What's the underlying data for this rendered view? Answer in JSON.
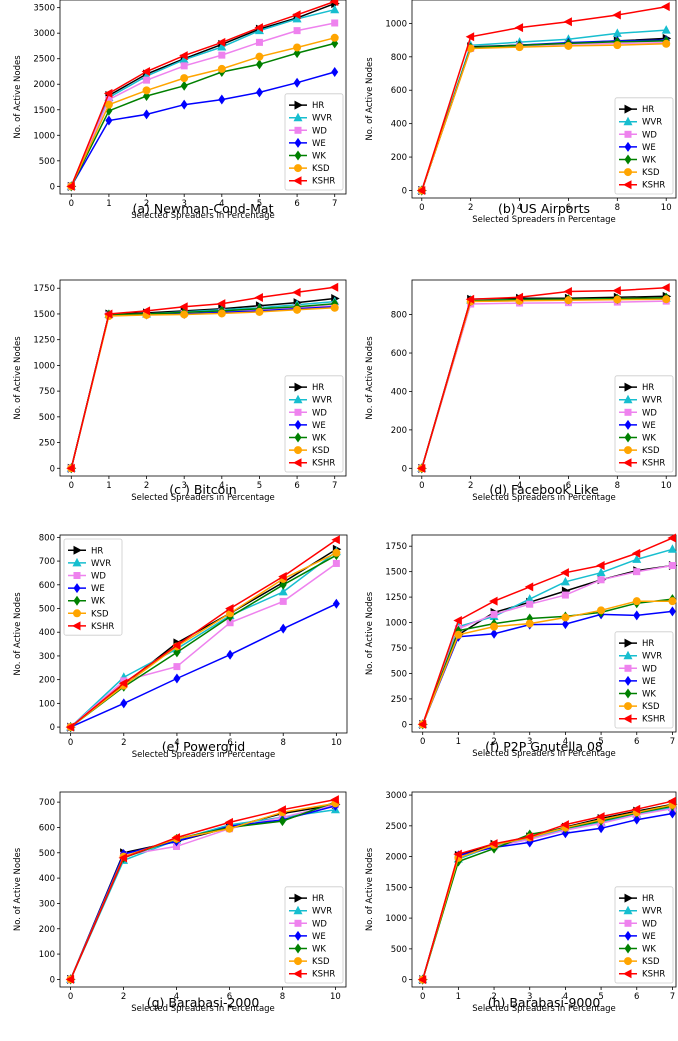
{
  "series_names": [
    "HR",
    "WVR",
    "WD",
    "WE",
    "WK",
    "KSD",
    "KSHR"
  ],
  "series_colors": [
    "#000000",
    "#17becf",
    "#ee82ee",
    "#0000ff",
    "#008000",
    "#ffa500",
    "#ff0000"
  ],
  "series_markers": [
    "triangle-right",
    "triangle-up",
    "square",
    "diamond",
    "diamond",
    "circle",
    "triangle-left"
  ],
  "chart_data": [
    {
      "type": "line",
      "caption": "(a)  Newman-Cond-Mat",
      "xlabel": "Selected Spreaders in Percentage",
      "ylabel": "No. of Active Nodes",
      "x": [
        0,
        1,
        2,
        3,
        4,
        5,
        6,
        7
      ],
      "xticks": [
        0,
        1,
        2,
        3,
        4,
        5,
        6,
        7
      ],
      "yticks": [
        0,
        500,
        1000,
        1500,
        2000,
        2500,
        3000,
        3500
      ],
      "xlim": [
        -0.3,
        7.3
      ],
      "ylim": [
        -150,
        3650
      ],
      "legend_position": "lower-right",
      "series": [
        {
          "name": "HR",
          "values": [
            0,
            1780,
            2200,
            2500,
            2780,
            3080,
            3300,
            3580
          ]
        },
        {
          "name": "WVR",
          "values": [
            0,
            1740,
            2160,
            2480,
            2730,
            3050,
            3280,
            3460
          ]
        },
        {
          "name": "WD",
          "values": [
            0,
            1700,
            2080,
            2360,
            2570,
            2820,
            3050,
            3200
          ]
        },
        {
          "name": "WE",
          "values": [
            0,
            1290,
            1410,
            1600,
            1700,
            1840,
            2030,
            2240
          ]
        },
        {
          "name": "WK",
          "values": [
            0,
            1480,
            1770,
            1970,
            2240,
            2390,
            2610,
            2800
          ]
        },
        {
          "name": "KSD",
          "values": [
            0,
            1600,
            1880,
            2120,
            2300,
            2540,
            2720,
            2910
          ]
        },
        {
          "name": "KSHR",
          "values": [
            0,
            1820,
            2250,
            2560,
            2820,
            3110,
            3360,
            3620
          ]
        }
      ]
    },
    {
      "type": "line",
      "caption": "(b) US Airports",
      "xlabel": "Selected Spreaders in Percentage",
      "ylabel": "No. of Active Nodes",
      "x": [
        0,
        2,
        4,
        6,
        8,
        10
      ],
      "xticks": [
        0,
        2,
        4,
        6,
        8,
        10
      ],
      "yticks": [
        0,
        200,
        400,
        600,
        800,
        1000
      ],
      "xlim": [
        -0.4,
        10.4
      ],
      "ylim": [
        -45,
        1140
      ],
      "legend_position": "lower-right",
      "series": [
        {
          "name": "HR",
          "values": [
            0,
            860,
            870,
            880,
            895,
            910
          ]
        },
        {
          "name": "WVR",
          "values": [
            0,
            868,
            888,
            905,
            940,
            960
          ]
        },
        {
          "name": "WD",
          "values": [
            0,
            850,
            865,
            875,
            880,
            885
          ]
        },
        {
          "name": "WE",
          "values": [
            0,
            855,
            870,
            885,
            895,
            900
          ]
        },
        {
          "name": "WK",
          "values": [
            0,
            855,
            868,
            880,
            890,
            895
          ]
        },
        {
          "name": "KSD",
          "values": [
            0,
            850,
            858,
            865,
            870,
            878
          ]
        },
        {
          "name": "KSHR",
          "values": [
            0,
            920,
            975,
            1010,
            1050,
            1100
          ]
        }
      ]
    },
    {
      "type": "line",
      "caption": "(c )   Bitcoin",
      "xlabel": "Selected Spreaders in Percentage",
      "ylabel": "No. of Active Nodes",
      "x": [
        0,
        1,
        2,
        3,
        4,
        5,
        6,
        7
      ],
      "xticks": [
        0,
        1,
        2,
        3,
        4,
        5,
        6,
        7
      ],
      "yticks": [
        0,
        250,
        500,
        750,
        1000,
        1250,
        1500,
        1750
      ],
      "xlim": [
        -0.3,
        7.3
      ],
      "ylim": [
        -75,
        1830
      ],
      "legend_position": "lower-right",
      "series": [
        {
          "name": "HR",
          "values": [
            0,
            1500,
            1510,
            1530,
            1550,
            1580,
            1610,
            1650
          ]
        },
        {
          "name": "WVR",
          "values": [
            0,
            1495,
            1500,
            1520,
            1540,
            1560,
            1590,
            1620
          ]
        },
        {
          "name": "WD",
          "values": [
            0,
            1490,
            1495,
            1505,
            1520,
            1540,
            1560,
            1580
          ]
        },
        {
          "name": "WE",
          "values": [
            0,
            1490,
            1495,
            1500,
            1515,
            1530,
            1550,
            1570
          ]
        },
        {
          "name": "WK",
          "values": [
            0,
            1495,
            1500,
            1515,
            1530,
            1550,
            1570,
            1600
          ]
        },
        {
          "name": "KSD",
          "values": [
            0,
            1480,
            1490,
            1495,
            1505,
            1520,
            1540,
            1560
          ]
        },
        {
          "name": "KSHR",
          "values": [
            0,
            1500,
            1530,
            1570,
            1600,
            1660,
            1710,
            1760
          ]
        }
      ]
    },
    {
      "type": "line",
      "caption": "(d) Facebook Like",
      "xlabel": "Selected Spreaders in Percentage",
      "ylabel": "No. of Active Nodes",
      "x": [
        0,
        2,
        4,
        6,
        8,
        10
      ],
      "xticks": [
        0,
        2,
        4,
        6,
        8,
        10
      ],
      "yticks": [
        0,
        200,
        400,
        600,
        800
      ],
      "xlim": [
        -0.4,
        10.4
      ],
      "ylim": [
        -40,
        980
      ],
      "legend_position": "lower-right",
      "series": [
        {
          "name": "HR",
          "values": [
            0,
            880,
            885,
            885,
            890,
            895
          ]
        },
        {
          "name": "WVR",
          "values": [
            0,
            875,
            878,
            880,
            882,
            885
          ]
        },
        {
          "name": "WD",
          "values": [
            0,
            855,
            860,
            862,
            865,
            870
          ]
        },
        {
          "name": "WE",
          "values": [
            0,
            870,
            875,
            878,
            880,
            885
          ]
        },
        {
          "name": "WK",
          "values": [
            0,
            872,
            878,
            880,
            882,
            888
          ]
        },
        {
          "name": "KSD",
          "values": [
            0,
            868,
            872,
            875,
            878,
            880
          ]
        },
        {
          "name": "KSHR",
          "values": [
            0,
            880,
            890,
            920,
            925,
            940
          ]
        }
      ]
    },
    {
      "type": "line",
      "caption": "(e)   Powergrid",
      "xlabel": "Selected Spreaders in Percentage",
      "ylabel": "No. of Active Nodes",
      "x": [
        0,
        2,
        4,
        6,
        8,
        10
      ],
      "xticks": [
        0,
        2,
        4,
        6,
        8,
        10
      ],
      "yticks": [
        0,
        100,
        200,
        300,
        400,
        500,
        600,
        700,
        800
      ],
      "xlim": [
        -0.4,
        10.4
      ],
      "ylim": [
        -25,
        810
      ],
      "legend_position": "upper-left",
      "series": [
        {
          "name": "HR",
          "values": [
            0,
            180,
            355,
            480,
            610,
            750
          ]
        },
        {
          "name": "WVR",
          "values": [
            0,
            210,
            330,
            470,
            570,
            740
          ]
        },
        {
          "name": "WD",
          "values": [
            0,
            195,
            255,
            440,
            530,
            690
          ]
        },
        {
          "name": "WE",
          "values": [
            0,
            100,
            205,
            305,
            415,
            520
          ]
        },
        {
          "name": "WK",
          "values": [
            0,
            170,
            315,
            465,
            600,
            725
          ]
        },
        {
          "name": "KSD",
          "values": [
            0,
            175,
            340,
            480,
            625,
            735
          ]
        },
        {
          "name": "KSHR",
          "values": [
            0,
            185,
            345,
            500,
            635,
            790
          ]
        }
      ]
    },
    {
      "type": "line",
      "caption": "(f) P2P Gnutella 08",
      "xlabel": "Selected Spreaders in Percentage",
      "ylabel": "No. of Active Nodes",
      "x": [
        0,
        1,
        2,
        3,
        4,
        5,
        6,
        7
      ],
      "xticks": [
        0,
        1,
        2,
        3,
        4,
        5,
        6,
        7
      ],
      "yticks": [
        0,
        250,
        500,
        750,
        1000,
        1250,
        1500,
        1750
      ],
      "xlim": [
        -0.3,
        7.1
      ],
      "ylim": [
        -75,
        1860
      ],
      "legend_position": "lower-right",
      "series": [
        {
          "name": "HR",
          "values": [
            0,
            880,
            1100,
            1200,
            1310,
            1420,
            1510,
            1560
          ]
        },
        {
          "name": "WVR",
          "values": [
            0,
            960,
            1060,
            1230,
            1400,
            1490,
            1620,
            1720
          ]
        },
        {
          "name": "WD",
          "values": [
            0,
            940,
            1080,
            1180,
            1270,
            1420,
            1500,
            1560
          ]
        },
        {
          "name": "WE",
          "values": [
            0,
            860,
            890,
            980,
            985,
            1080,
            1070,
            1110
          ]
        },
        {
          "name": "WK",
          "values": [
            0,
            920,
            990,
            1040,
            1060,
            1100,
            1190,
            1230
          ]
        },
        {
          "name": "KSD",
          "values": [
            0,
            880,
            960,
            990,
            1050,
            1120,
            1210,
            1210
          ]
        },
        {
          "name": "KSHR",
          "values": [
            0,
            1020,
            1210,
            1350,
            1490,
            1560,
            1680,
            1830
          ]
        }
      ]
    },
    {
      "type": "line",
      "caption": "(g) Barabasi-2000",
      "xlabel": "Selected Spreaders in Percentage",
      "ylabel": "No. of Active Nodes",
      "x": [
        0,
        2,
        4,
        6,
        8,
        10
      ],
      "xticks": [
        0,
        2,
        4,
        6,
        8,
        10
      ],
      "yticks": [
        0,
        100,
        200,
        300,
        400,
        500,
        600,
        700
      ],
      "xlim": [
        -0.4,
        10.4
      ],
      "ylim": [
        -30,
        740
      ],
      "legend_position": "lower-right",
      "series": [
        {
          "name": "HR",
          "values": [
            0,
            500,
            545,
            600,
            655,
            690
          ]
        },
        {
          "name": "WVR",
          "values": [
            0,
            470,
            550,
            610,
            640,
            670
          ]
        },
        {
          "name": "WD",
          "values": [
            0,
            490,
            525,
            595,
            640,
            690
          ]
        },
        {
          "name": "WE",
          "values": [
            0,
            495,
            545,
            605,
            630,
            685
          ]
        },
        {
          "name": "WK",
          "values": [
            0,
            480,
            555,
            600,
            625,
            700
          ]
        },
        {
          "name": "KSD",
          "values": [
            0,
            485,
            555,
            595,
            660,
            695
          ]
        },
        {
          "name": "KSHR",
          "values": [
            0,
            480,
            560,
            620,
            670,
            710
          ]
        }
      ]
    },
    {
      "type": "line",
      "caption": "(h) Barabasi-9000",
      "xlabel": "Selected Spreaders in Percentage",
      "ylabel": "No. of Active Nodes",
      "x": [
        0,
        1,
        2,
        3,
        4,
        5,
        6,
        7
      ],
      "xticks": [
        0,
        1,
        2,
        3,
        4,
        5,
        6,
        7
      ],
      "yticks": [
        0,
        500,
        1000,
        1500,
        2000,
        2500,
        3000
      ],
      "xlim": [
        -0.3,
        7.1
      ],
      "ylim": [
        -120,
        3050
      ],
      "legend_position": "lower-right",
      "series": [
        {
          "name": "HR",
          "values": [
            0,
            2020,
            2200,
            2320,
            2480,
            2620,
            2740,
            2850
          ]
        },
        {
          "name": "WVR",
          "values": [
            0,
            1960,
            2180,
            2300,
            2450,
            2560,
            2690,
            2800
          ]
        },
        {
          "name": "WD",
          "values": [
            0,
            2000,
            2160,
            2280,
            2430,
            2540,
            2680,
            2780
          ]
        },
        {
          "name": "WE",
          "values": [
            0,
            2020,
            2150,
            2230,
            2380,
            2460,
            2600,
            2700
          ]
        },
        {
          "name": "WK",
          "values": [
            0,
            1920,
            2130,
            2360,
            2460,
            2580,
            2710,
            2820
          ]
        },
        {
          "name": "KSD",
          "values": [
            0,
            1980,
            2190,
            2310,
            2470,
            2600,
            2720,
            2840
          ]
        },
        {
          "name": "KSHR",
          "values": [
            0,
            2040,
            2210,
            2320,
            2520,
            2650,
            2770,
            2900
          ]
        }
      ]
    }
  ]
}
